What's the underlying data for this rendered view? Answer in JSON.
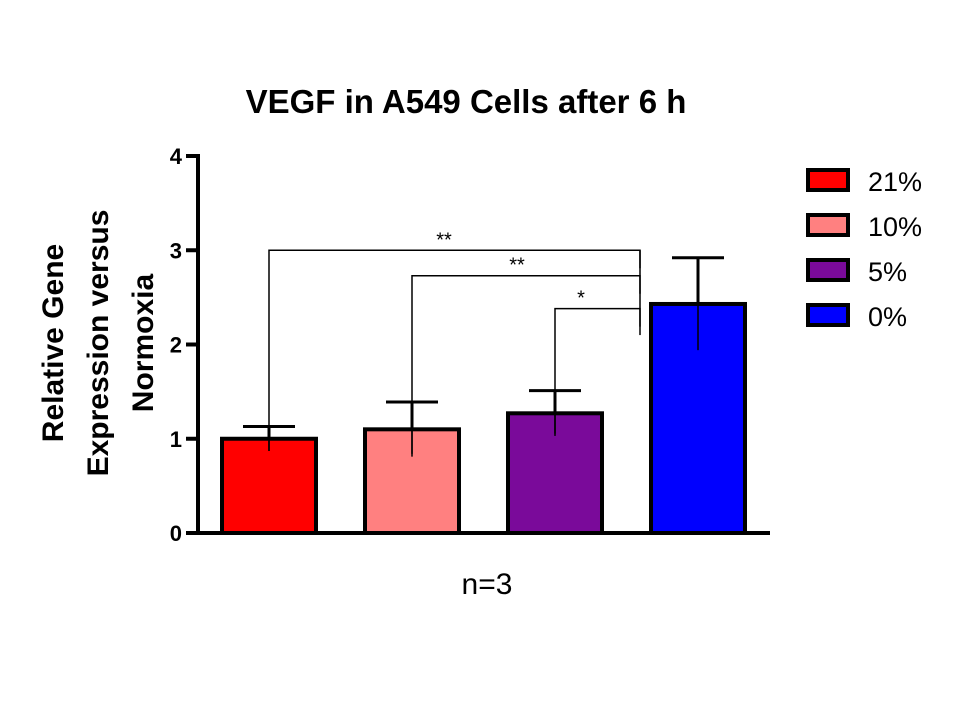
{
  "chart_data": {
    "type": "bar",
    "title": "VEGF in A549 Cells after 6 h",
    "ylabel_lines": [
      "Relative Gene",
      "Expression versus",
      "Normoxia"
    ],
    "xlabel": "n=3",
    "categories": [
      "21%",
      "10%",
      "5%",
      "0%"
    ],
    "values": [
      1.0,
      1.1,
      1.27,
      2.43
    ],
    "errors": [
      0.13,
      0.29,
      0.24,
      0.49
    ],
    "colors": [
      "#ff0000",
      "#ff8080",
      "#7a0a9a",
      "#0000ff"
    ],
    "ylim": [
      0,
      4
    ],
    "yticks": [
      "0",
      "1",
      "2",
      "3",
      "4"
    ],
    "legend": {
      "position": "right",
      "entries": [
        "21%",
        "10%",
        "5%",
        "0%"
      ]
    },
    "significance": [
      {
        "from": 0,
        "to": 3,
        "label": "**",
        "level": 3.0
      },
      {
        "from": 1,
        "to": 3,
        "label": "**",
        "level": 2.73
      },
      {
        "from": 2,
        "to": 3,
        "label": "*",
        "level": 2.38
      }
    ]
  }
}
